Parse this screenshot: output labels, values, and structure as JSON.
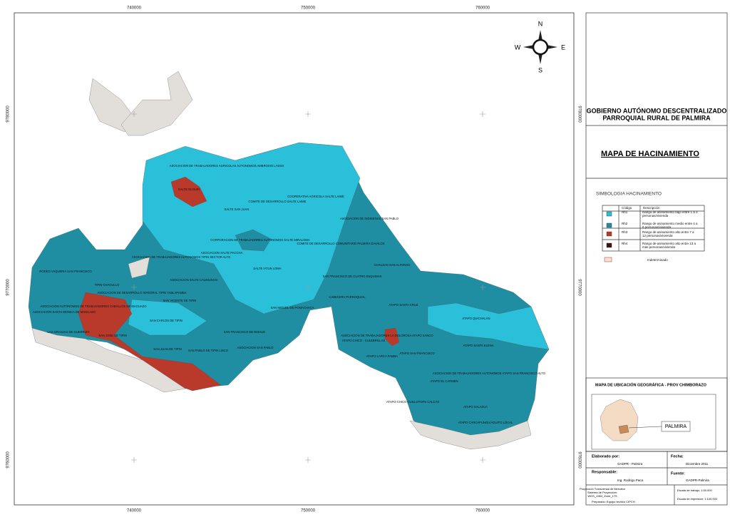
{
  "map": {
    "x_coords": [
      "740000",
      "750000",
      "760000"
    ],
    "y_coords": [
      "9780000",
      "9770000",
      "9760000"
    ],
    "compass": {
      "n": "N",
      "e": "E",
      "s": "S",
      "w": "W"
    },
    "labels": [
      "ASOCIACION DE TRABAJADORES AGRICOLAS AUTONOMOS AMBROSIO LASSO",
      "SALTE GUSUIN",
      "COOPERATIVA AGRICOLA SALTE LAIME",
      "COMITE DE DESARROLLO SALTE LAIME",
      "SALTE SAN JUAN",
      "ASOCIACION DE INDIGENAS SAN PABLO",
      "CORPORACION DE TRABAJADORES AUTONOMOS SALTE MIRALOMA",
      "COMITE DE DESARROLLO COMUNITARIO PALMIRA DAVALOS",
      "ASOCIACION SALTE PACCHA",
      "ASOCIACION DE TRABAJADORES AUTONOMOS TIPIN SECTOR ALTO",
      "SALTE IATUN LOMA",
      "CHAUZAN SAN ALFONSO",
      "SAN FRANCISCO DE CUATRO ESQUINAS",
      "ASOCIACION SALTE CALIMUNXIA",
      "RODEO VAQUERIA SAN FRANCISCO",
      "TIPIN CHACULLO",
      "ASOCIACION DE DESARROLLO INTEGRAL TIPIN TABLAPAMBA",
      "CABECERA PARROQUIAL",
      "SAN VICENTE DE TIPIN",
      "ATAPO SANTA CRUZ",
      "ASOCIACION AUTONOMOS DE TRABAJADORES CABALLOS DE MAGUAZO",
      "ASOCIACION SANTA MONICA DE MAGUAZO",
      "SAN MIGUEL DE POMACHACA",
      "ATAPO QUICHALAN",
      "SAN CARLOS DE TIPIN",
      "SAN FRANCISCO DE BISHUD",
      "LAS GRANJAS DE GUERRIZO",
      "SAN JOSE DE TIPIN",
      "ASOCIACION DE TRABAJADORES LA DOLOROSA ATAPO SANCO",
      "ATAPO CHICO - CULEBRILLAS",
      "ATAPO SANTA ELENA",
      "ASOCIACION SAN PABLO",
      "SAN JUAN DE TIPIN",
      "SAN PABLO DE TIPIN LISCO",
      "ATAPO SAN FRANCISCO",
      "ATAPO LARCA PAMBA",
      "ASOCIACION DE TRABAJADORES AUTONOMOS ATAPO SAN FRANCISCO ALTO",
      "ATAPO EL CARMEN",
      "ATAPO CHICO GUILLOTOPS CALCAS",
      "ATAPO SALAZUA",
      "ATAPO CARCAPUNGU/AGUITO LOCAL"
    ]
  },
  "panel": {
    "org_line1": "GOBIERNO AUTÓNOMO DESCENTRALIZADO",
    "org_line2": "PARROQUIAL RURAL  DE PALMIRA",
    "title": "MAPA DE HACINAMIENTO",
    "legend": {
      "title": "SIMBOLOGIA  HACINAMIENTO",
      "header": [
        "Código",
        "Descripción"
      ],
      "rows": [
        [
          "Rh1",
          "Rango de asinamiento bajo entre 1 a 3",
          "personas/vivienda"
        ],
        [
          "Rh2",
          "Rango de asinamiento medio entre 4 a",
          "6 personas/vivienda"
        ],
        [
          "Rh3",
          "Rango de asinamiento alto entre 7 a",
          "12 personas/vivienda"
        ],
        [
          "Rh4",
          "Rango de asinamiento alto  entre 13 a",
          "más personas/vivienda"
        ]
      ],
      "indeterminado": "Indeterminado"
    },
    "location": {
      "title": "MAPA DE UBICACIÓN GEOGRÁFICA - PROV CHIMBORAZO",
      "label": "PALMIRA"
    },
    "footer": {
      "elaborado_label": "Elaborado por:",
      "elaborado": "GADPR - Palmira",
      "fecha_label": "Fecha:",
      "fecha": "Diciembre 2011",
      "responsable_label": "Responsable:",
      "responsable": "Ing. Rodrigo Paca",
      "fuente_label": "Fuente:",
      "fuente": "GADPR-Palmira",
      "proyeccion": [
        "Proyección Transversal de Mercator",
        "Sistema de Proyección:",
        "WGS_1984_Zone_17S"
      ],
      "escala_trabajo": "Escala de trabajo: 1:50.000",
      "escala_impresion": "Escala  de impresión: 1:100.000",
      "preparado": "Preparado: Equipo tecnico CIPCH"
    }
  }
}
